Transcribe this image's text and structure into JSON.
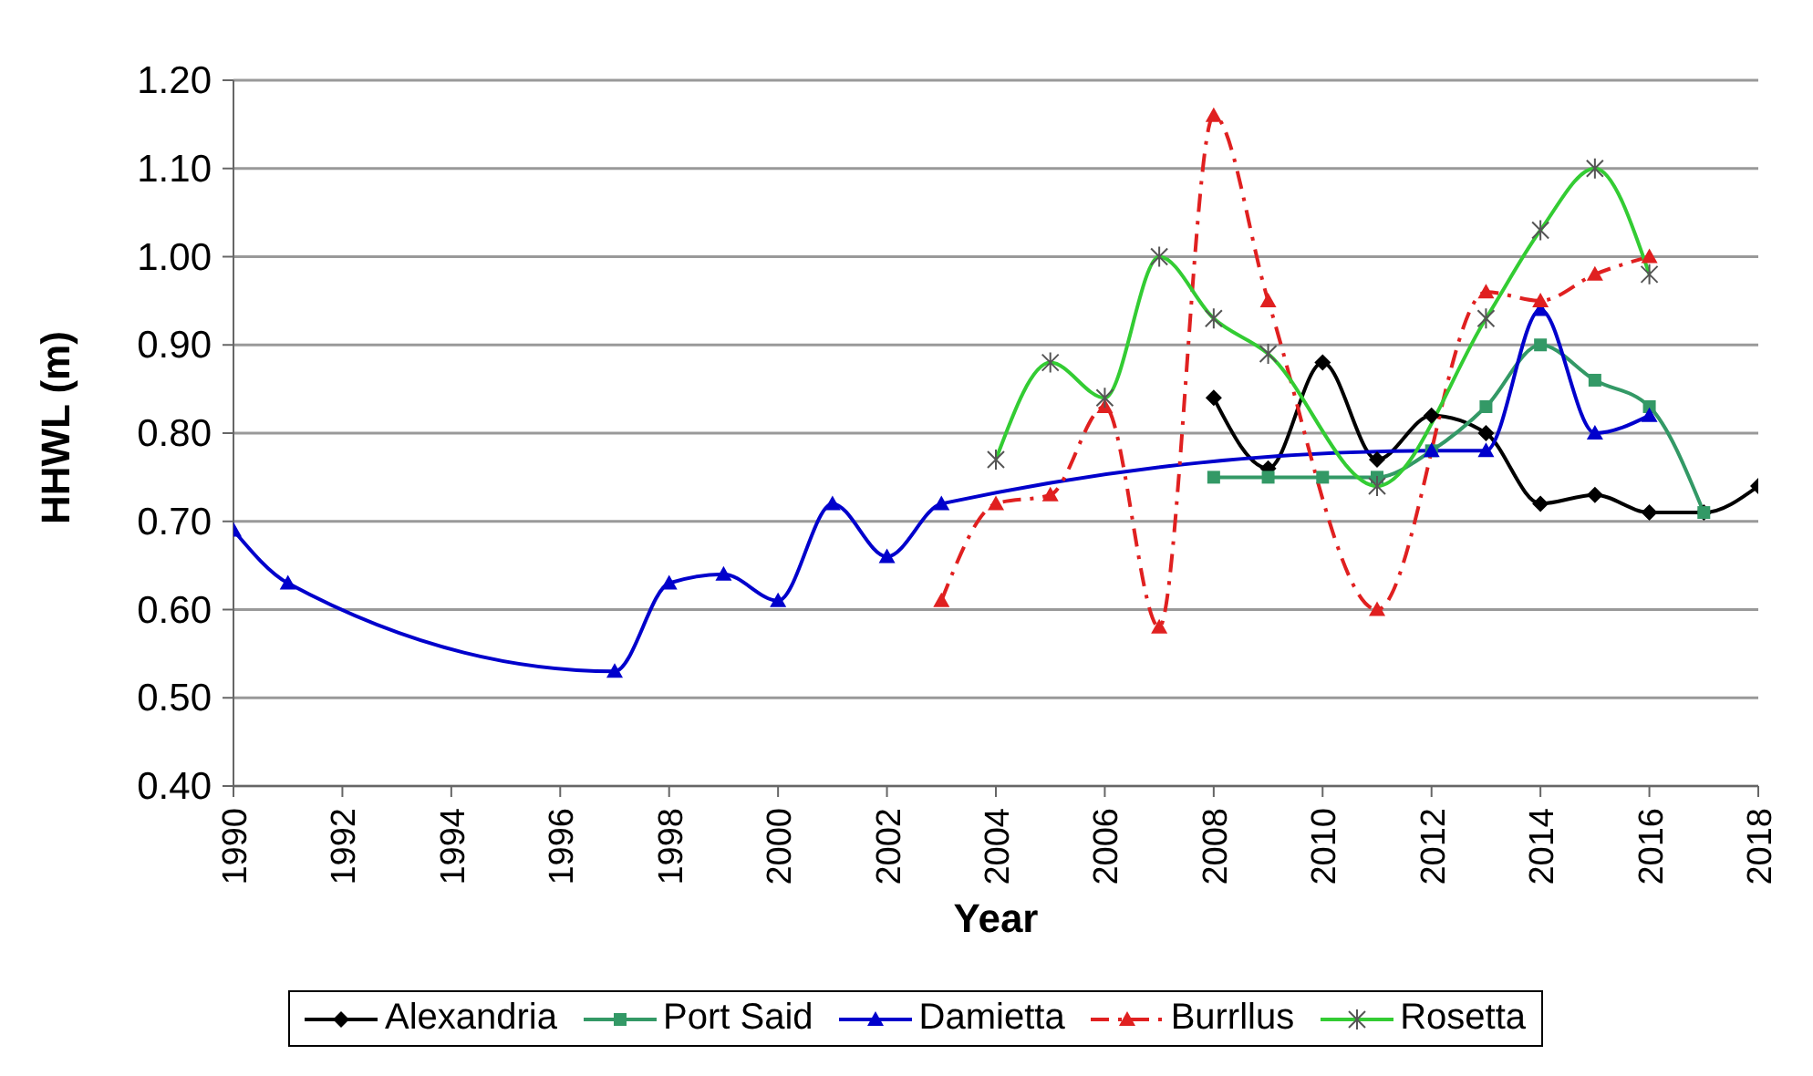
{
  "chart_data": {
    "type": "line",
    "xlabel": "Year",
    "ylabel": "HHWL (m)",
    "xlim": [
      1990,
      2018
    ],
    "xticks": [
      1990,
      1992,
      1994,
      1996,
      1998,
      2000,
      2002,
      2004,
      2006,
      2008,
      2010,
      2012,
      2014,
      2016,
      2018
    ],
    "ylim": [
      0.4,
      1.2
    ],
    "yticks": [
      {
        "value": 0.4,
        "label": "0.40"
      },
      {
        "value": 0.5,
        "label": "0.50"
      },
      {
        "value": 0.6,
        "label": "0.60"
      },
      {
        "value": 0.7,
        "label": "0.70"
      },
      {
        "value": 0.8,
        "label": "0.80"
      },
      {
        "value": 0.9,
        "label": "0.90"
      },
      {
        "value": 1.0,
        "label": "1.00"
      },
      {
        "value": 1.1,
        "label": "1.10"
      },
      {
        "value": 1.2,
        "label": "1.20"
      }
    ],
    "grid": "y",
    "legend": "bottom",
    "line_style": "solid",
    "series": [
      {
        "name": "Alexandria",
        "color": "#000000",
        "marker": "diamond",
        "x": [
          2008,
          2009,
          2010,
          2011,
          2012,
          2013,
          2014,
          2015,
          2016,
          2017,
          2018
        ],
        "values": [
          0.84,
          0.76,
          0.88,
          0.77,
          0.82,
          0.8,
          0.72,
          0.73,
          0.71,
          0.71,
          0.74
        ]
      },
      {
        "name": "Port Said",
        "color": "#339966",
        "marker": "square",
        "x": [
          2008,
          2009,
          2010,
          2011,
          2012,
          2013,
          2014,
          2015,
          2016,
          2017
        ],
        "values": [
          0.75,
          0.75,
          0.75,
          0.75,
          0.78,
          0.83,
          0.9,
          0.86,
          0.83,
          0.71
        ]
      },
      {
        "name": "Damietta",
        "color": "#0000cc",
        "marker": "triangle",
        "x": [
          1990,
          1991,
          1997,
          1998,
          1999,
          2000,
          2001,
          2002,
          2003,
          2012,
          2013,
          2014,
          2015,
          2016
        ],
        "values": [
          0.69,
          0.63,
          0.53,
          0.63,
          0.64,
          0.61,
          0.72,
          0.66,
          0.72,
          0.78,
          0.78,
          0.94,
          0.8,
          0.82
        ]
      },
      {
        "name": "Burrllus",
        "color": "#e02020",
        "marker": "triangle",
        "line_style": "dashed",
        "x": [
          2003,
          2004,
          2005,
          2006,
          2007,
          2008,
          2009,
          2011,
          2013,
          2014,
          2015,
          2016
        ],
        "values": [
          0.61,
          0.72,
          0.73,
          0.83,
          0.58,
          1.16,
          0.95,
          0.6,
          0.96,
          0.95,
          0.98,
          1.0
        ]
      },
      {
        "name": "Rosetta",
        "color": "#33cc33",
        "marker": "cross",
        "x": [
          2004,
          2005,
          2006,
          2007,
          2008,
          2009,
          2011,
          2013,
          2014,
          2015,
          2016
        ],
        "values": [
          0.77,
          0.88,
          0.84,
          1.0,
          0.93,
          0.89,
          0.74,
          0.93,
          1.03,
          1.1,
          0.98
        ]
      }
    ]
  }
}
